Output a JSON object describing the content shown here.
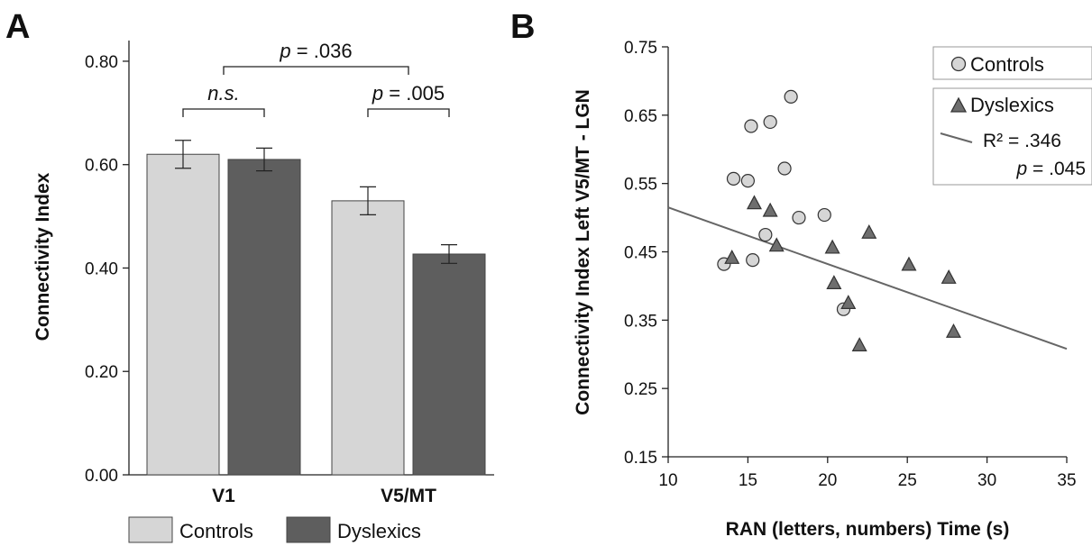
{
  "chart_data": [
    {
      "panel": "A",
      "type": "bar",
      "categories": [
        "V1",
        "V5/MT"
      ],
      "series": [
        {
          "name": "Controls",
          "values": [
            0.62,
            0.53
          ],
          "errors": [
            0.027,
            0.027
          ],
          "color": "#d6d6d6"
        },
        {
          "name": "Dyslexics",
          "values": [
            0.61,
            0.427
          ],
          "errors": [
            0.022,
            0.018
          ],
          "color": "#5e5e5e"
        }
      ],
      "ylabel": "Connectivity Index",
      "ylim": [
        0,
        0.84
      ],
      "yticks": [
        "0.00",
        "0.20",
        "0.40",
        "0.60",
        "0.80"
      ],
      "legend": "bottom",
      "annotations": [
        {
          "text": "n.s.",
          "category": "V1"
        },
        {
          "text": "p = .005",
          "category": "V5/MT"
        },
        {
          "text": "p = .036",
          "category": "V1 vs V5/MT"
        }
      ]
    },
    {
      "panel": "B",
      "type": "scatter",
      "xlabel": "RAN (letters, numbers) Time (s)",
      "ylabel": "Connectivity Index Left V5/MT - LGN",
      "xlim": [
        10,
        35
      ],
      "ylim": [
        0.15,
        0.75
      ],
      "xticks": [
        "10",
        "15",
        "20",
        "25",
        "30",
        "35"
      ],
      "yticks": [
        "0.15",
        "0.25",
        "0.35",
        "0.45",
        "0.55",
        "0.65",
        "0.75"
      ],
      "legend": "top-right",
      "series": [
        {
          "name": "Controls",
          "marker": "circle",
          "color": "#d6d6d6",
          "x": [
            13.5,
            14.1,
            15.0,
            15.2,
            15.3,
            16.1,
            16.4,
            17.3,
            17.7,
            18.2,
            19.8,
            21.0
          ],
          "y": [
            0.432,
            0.557,
            0.554,
            0.634,
            0.438,
            0.475,
            0.64,
            0.572,
            0.677,
            0.5,
            0.504,
            0.366
          ]
        },
        {
          "name": "Dyslexics",
          "marker": "triangle",
          "color": "#6e6e6e",
          "x": [
            14.0,
            15.4,
            16.4,
            16.8,
            20.3,
            20.4,
            21.3,
            22.0,
            22.6,
            25.1,
            27.6,
            27.9
          ],
          "y": [
            0.441,
            0.521,
            0.51,
            0.459,
            0.456,
            0.404,
            0.375,
            0.313,
            0.478,
            0.431,
            0.412,
            0.333
          ]
        }
      ],
      "fit": {
        "x": [
          10,
          35
        ],
        "y": [
          0.515,
          0.308
        ]
      },
      "stats": {
        "r2": "R² = .346",
        "p_prefix": "p",
        "p_value": " = .045"
      }
    }
  ],
  "labels": {
    "panel_a": "A",
    "panel_b": "B"
  }
}
